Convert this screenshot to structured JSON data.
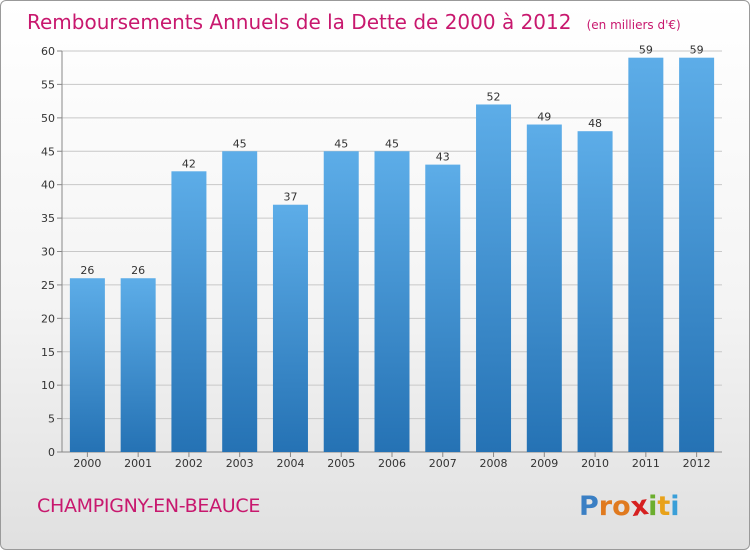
{
  "chart_data": {
    "type": "bar",
    "title": "Remboursements Annuels de la Dette de 2000 à 2012",
    "unit_note": "(en milliers d'€)",
    "categories": [
      "2000",
      "2001",
      "2002",
      "2003",
      "2004",
      "2005",
      "2006",
      "2007",
      "2008",
      "2009",
      "2010",
      "2011",
      "2012"
    ],
    "values": [
      26,
      26,
      42,
      45,
      37,
      45,
      45,
      43,
      52,
      49,
      48,
      59,
      59
    ],
    "ylim": [
      0,
      60
    ],
    "yticks": [
      0,
      5,
      10,
      15,
      20,
      25,
      30,
      35,
      40,
      45,
      50,
      55,
      60
    ],
    "xlabel": "",
    "ylabel": "",
    "grid": true,
    "colors": {
      "bar_top": "#5dade8",
      "bar_bottom": "#2572b4",
      "grid": "#c8c8c8",
      "title": "#c8186e"
    }
  },
  "commune": "CHAMPIGNY-EN-BEAUCE",
  "logo": {
    "text": "Proxiti",
    "letters": [
      "P",
      "r",
      "o",
      "x",
      "i",
      "t",
      "i"
    ],
    "colors": [
      "#3a7fc4",
      "#e07a1f",
      "#e07a1f",
      "#d62020",
      "#6cae2e",
      "#e8a21a",
      "#3a9fd8"
    ]
  }
}
